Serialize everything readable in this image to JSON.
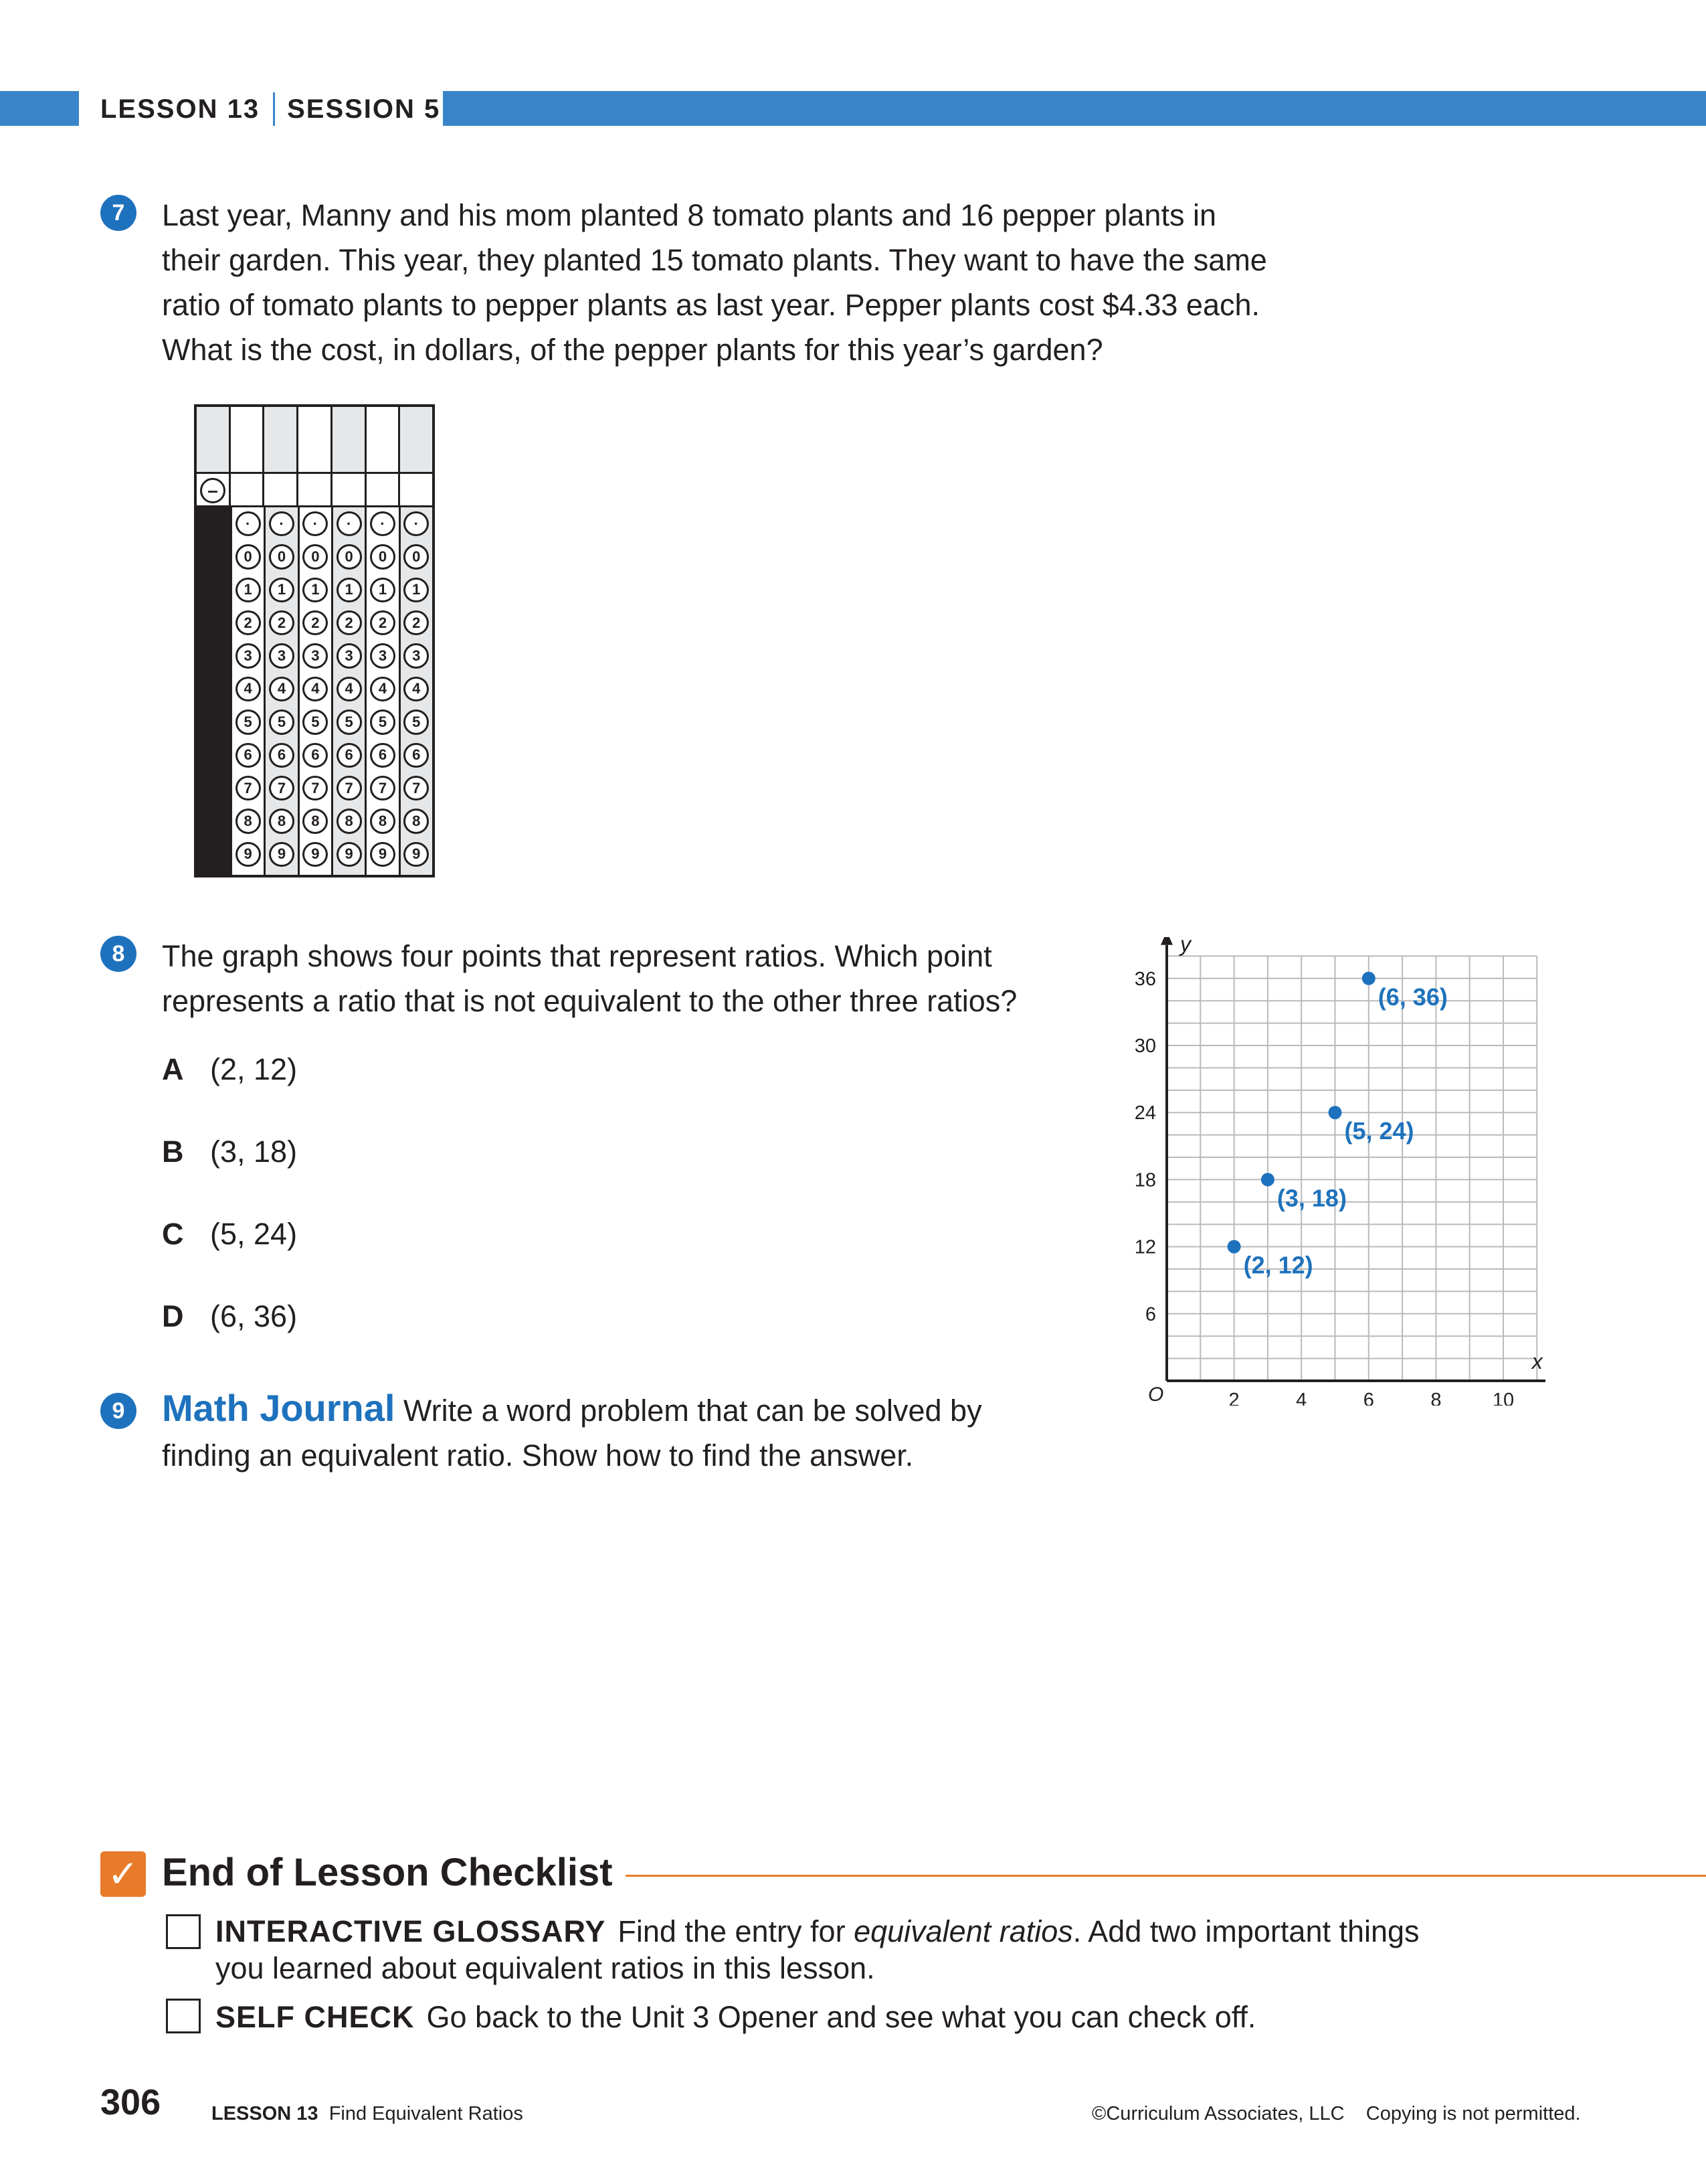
{
  "header": {
    "lesson": "LESSON 13",
    "session": "SESSION 5"
  },
  "q7": {
    "number": "7",
    "lines": [
      "Last year, Manny and his mom planted 8 tomato plants and 16 pepper plants in",
      "their garden. This year, they planted 15 tomato plants. They want to have the same",
      "ratio of tomato plants to pepper plants as last year. Pepper plants cost $4.33 each.",
      "What is the cost, in dollars, of the pepper plants for this year’s garden?"
    ],
    "grid_in": {
      "minus": "–",
      "decimal": "·",
      "digits": [
        "0",
        "1",
        "2",
        "3",
        "4",
        "5",
        "6",
        "7",
        "8",
        "9"
      ]
    }
  },
  "q8": {
    "number": "8",
    "lines": [
      "The graph shows four points that represent ratios. Which point",
      "represents a ratio that is not equivalent to the other three ratios?"
    ],
    "choices": [
      {
        "letter": "A",
        "text": "(2, 12)"
      },
      {
        "letter": "B",
        "text": "(3, 18)"
      },
      {
        "letter": "C",
        "text": "(5, 24)"
      },
      {
        "letter": "D",
        "text": "(6, 36)"
      }
    ]
  },
  "chart_data": {
    "type": "scatter",
    "xlabel": "x",
    "ylabel": "y",
    "origin_label": "O",
    "xlim": [
      0,
      11
    ],
    "ylim": [
      0,
      38
    ],
    "x_ticks": [
      "2",
      "4",
      "6",
      "8",
      "10"
    ],
    "y_ticks": [
      "6",
      "12",
      "18",
      "24",
      "30",
      "36"
    ],
    "grid": true,
    "point_color": "#1e72bd",
    "points": [
      {
        "x": 2,
        "y": 12,
        "label": "(2, 12)"
      },
      {
        "x": 3,
        "y": 18,
        "label": "(3, 18)"
      },
      {
        "x": 5,
        "y": 24,
        "label": "(5, 24)"
      },
      {
        "x": 6,
        "y": 36,
        "label": "(6, 36)"
      }
    ]
  },
  "q9": {
    "number": "9",
    "title": "Math Journal",
    "line1": "Write a word problem that can be solved by",
    "line2": "finding an equivalent ratio. Show how to find the answer."
  },
  "checklist": {
    "title": "End of Lesson Checklist",
    "items": [
      {
        "label": "INTERACTIVE GLOSSARY",
        "text_before": "Find the entry for ",
        "text_italic": "equivalent ratios",
        "text_after": ". Add two important things",
        "line2": "you learned about equivalent ratios in this lesson."
      },
      {
        "label": "SELF CHECK",
        "text": "Go back to the Unit 3 Opener and see what you can check off."
      }
    ]
  },
  "footer": {
    "page": "306",
    "lesson_label": "LESSON 13",
    "lesson_title": "Find Equivalent Ratios",
    "copyright": "©Curriculum Associates, LLC",
    "notice": "Copying is not permitted."
  },
  "colors": {
    "accent_blue": "#3a85c9",
    "number_blue": "#1e72bd",
    "orange": "#e87b2a"
  }
}
